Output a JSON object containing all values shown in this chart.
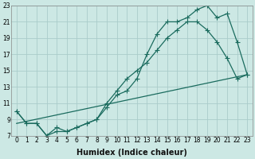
{
  "title": "",
  "xlabel": "Humidex (Indice chaleur)",
  "background_color": "#cce8e4",
  "grid_color": "#aaccca",
  "line_color": "#1a6b5e",
  "xlim": [
    -0.5,
    23.5
  ],
  "ylim": [
    7,
    23
  ],
  "xticks": [
    0,
    1,
    2,
    3,
    4,
    5,
    6,
    7,
    8,
    9,
    10,
    11,
    12,
    13,
    14,
    15,
    16,
    17,
    18,
    19,
    20,
    21,
    22,
    23
  ],
  "yticks": [
    7,
    9,
    11,
    13,
    15,
    17,
    19,
    21,
    23
  ],
  "line1_x": [
    0,
    1,
    2,
    3,
    4,
    5,
    6,
    7,
    8,
    9,
    10,
    11,
    12,
    13,
    14,
    15,
    16,
    17,
    18,
    19,
    20,
    21,
    22,
    23
  ],
  "line1_y": [
    10,
    8.5,
    8.5,
    7,
    7.5,
    7.5,
    8,
    8.5,
    9,
    10.5,
    12,
    12.5,
    14,
    17,
    19.5,
    21,
    21,
    21.5,
    22.5,
    23,
    21.5,
    22,
    18.5,
    14.5
  ],
  "line2_x": [
    0,
    1,
    2,
    3,
    4,
    5,
    6,
    7,
    8,
    9,
    10,
    11,
    12,
    13,
    14,
    15,
    16,
    17,
    18,
    19,
    20,
    21,
    22,
    23
  ],
  "line2_y": [
    10,
    8.5,
    8.5,
    7,
    8,
    7.5,
    8,
    8.5,
    9,
    11,
    12.5,
    14,
    15,
    16,
    17.5,
    19,
    20,
    21,
    21,
    20,
    18.5,
    16.5,
    14,
    14.5
  ],
  "line3_x": [
    0,
    23
  ],
  "line3_y": [
    8.5,
    14.5
  ],
  "xlabel_fontsize": 7,
  "tick_fontsize": 5.5,
  "lw": 0.9,
  "ms": 2.0
}
